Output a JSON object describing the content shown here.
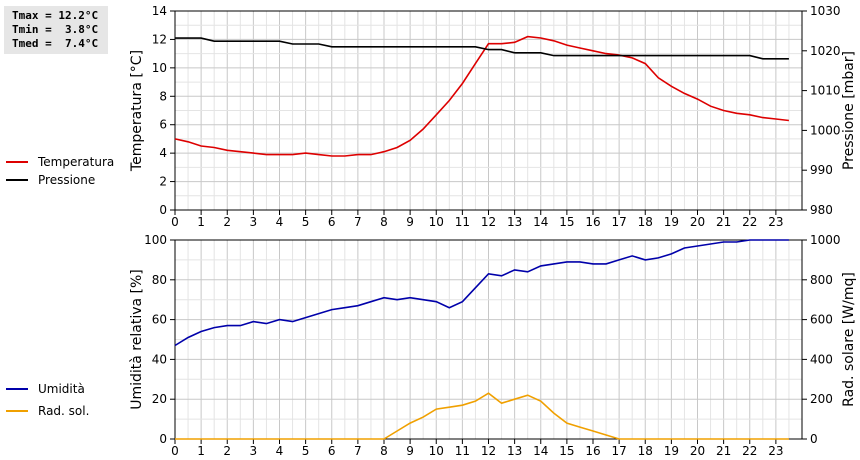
{
  "stats": {
    "tmax": "Tmax = 12.2°C",
    "tmin": "Tmin =  3.8°C",
    "tmed": "Tmed =  7.4°C"
  },
  "legend_top": [
    {
      "label": "Temperatura",
      "color": "#dd0000"
    },
    {
      "label": "Pressione",
      "color": "#000000"
    }
  ],
  "legend_bottom": [
    {
      "label": "Umidità",
      "color": "#0000aa"
    },
    {
      "label": "Rad. sol.",
      "color": "#f0a000"
    }
  ],
  "chart_data": [
    {
      "type": "line",
      "x_ticks": [
        "0",
        "1",
        "2",
        "3",
        "4",
        "5",
        "6",
        "7",
        "8",
        "9",
        "10",
        "11",
        "12",
        "13",
        "14",
        "15",
        "16",
        "17",
        "18",
        "19",
        "20",
        "21",
        "22",
        "23"
      ],
      "xlim": [
        0,
        24
      ],
      "ylabel_left": "Temperatura [°C]",
      "ylim_left": [
        0,
        14
      ],
      "yticks_left": [
        "0",
        "2",
        "4",
        "6",
        "8",
        "10",
        "12",
        "14"
      ],
      "ylabel_right": "Pressione [mbar]",
      "ylim_right": [
        980,
        1030
      ],
      "yticks_right": [
        "980",
        "990",
        "1000",
        "1010",
        "1020",
        "1030"
      ],
      "grid": true,
      "series": [
        {
          "name": "Temperatura",
          "axis": "left",
          "color": "#dd0000",
          "x": [
            0,
            0.5,
            1,
            1.5,
            2,
            2.5,
            3,
            3.5,
            4,
            4.5,
            5,
            5.5,
            6,
            6.5,
            7,
            7.5,
            8,
            8.5,
            9,
            9.5,
            10,
            10.5,
            11,
            11.5,
            12,
            12.5,
            13,
            13.5,
            14,
            14.5,
            15,
            15.5,
            16,
            16.5,
            17,
            17.5,
            18,
            18.5,
            19,
            19.5,
            20,
            20.5,
            21,
            21.5,
            22,
            22.5,
            23,
            23.5
          ],
          "y": [
            5.0,
            4.8,
            4.5,
            4.4,
            4.2,
            4.1,
            4.0,
            3.9,
            3.9,
            3.9,
            4.0,
            3.9,
            3.8,
            3.8,
            3.9,
            3.9,
            4.1,
            4.4,
            4.9,
            5.7,
            6.7,
            7.7,
            8.9,
            10.3,
            11.7,
            11.7,
            11.8,
            12.2,
            12.1,
            11.9,
            11.6,
            11.4,
            11.2,
            11.0,
            10.9,
            10.7,
            10.3,
            9.3,
            8.7,
            8.2,
            7.8,
            7.3,
            7.0,
            6.8,
            6.7,
            6.5,
            6.4,
            6.3
          ]
        },
        {
          "name": "Pressione",
          "axis": "right",
          "color": "#000000",
          "x": [
            0,
            0.5,
            1,
            1.5,
            2,
            2.5,
            3,
            3.5,
            4,
            4.5,
            5,
            5.5,
            6,
            6.5,
            7,
            7.5,
            8,
            8.5,
            9,
            9.5,
            10,
            10.5,
            11,
            11.5,
            12,
            12.5,
            13,
            13.5,
            14,
            14.5,
            15,
            15.5,
            16,
            16.5,
            17,
            17.5,
            18,
            18.5,
            19,
            19.5,
            20,
            20.5,
            21,
            21.5,
            22,
            22.5,
            23,
            23.5
          ],
          "y": [
            1023.2,
            1023.2,
            1023.2,
            1022.4,
            1022.4,
            1022.4,
            1022.4,
            1022.4,
            1022.4,
            1021.7,
            1021.7,
            1021.7,
            1021.0,
            1021.0,
            1021.0,
            1021.0,
            1021.0,
            1021.0,
            1021.0,
            1021.0,
            1021.0,
            1021.0,
            1021.0,
            1021.0,
            1020.3,
            1020.3,
            1019.5,
            1019.5,
            1019.5,
            1018.8,
            1018.8,
            1018.8,
            1018.8,
            1018.8,
            1018.8,
            1018.8,
            1018.8,
            1018.8,
            1018.8,
            1018.8,
            1018.8,
            1018.8,
            1018.8,
            1018.8,
            1018.8,
            1018.0,
            1018.0,
            1018.0
          ]
        }
      ]
    },
    {
      "type": "line",
      "x_ticks": [
        "0",
        "1",
        "2",
        "3",
        "4",
        "5",
        "6",
        "7",
        "8",
        "9",
        "10",
        "11",
        "12",
        "13",
        "14",
        "15",
        "16",
        "17",
        "18",
        "19",
        "20",
        "21",
        "22",
        "23"
      ],
      "xlim": [
        0,
        24
      ],
      "ylabel_left": "Umidità relativa [%]",
      "ylim_left": [
        0,
        100
      ],
      "yticks_left": [
        "0",
        "20",
        "40",
        "60",
        "80",
        "100"
      ],
      "ylabel_right": "Rad. solare [W/mq]",
      "ylim_right": [
        0,
        1000
      ],
      "yticks_right": [
        "0",
        "200",
        "400",
        "600",
        "800",
        "1000"
      ],
      "grid": true,
      "series": [
        {
          "name": "Umidità",
          "axis": "left",
          "color": "#0000aa",
          "x": [
            0,
            0.5,
            1,
            1.5,
            2,
            2.5,
            3,
            3.5,
            4,
            4.5,
            5,
            5.5,
            6,
            6.5,
            7,
            7.5,
            8,
            8.5,
            9,
            9.5,
            10,
            10.5,
            11,
            11.5,
            12,
            12.5,
            13,
            13.5,
            14,
            14.5,
            15,
            15.5,
            16,
            16.5,
            17,
            17.5,
            18,
            18.5,
            19,
            19.5,
            20,
            20.5,
            21,
            21.5,
            22,
            22.5,
            23,
            23.5
          ],
          "y": [
            47,
            51,
            54,
            56,
            57,
            57,
            59,
            58,
            60,
            59,
            61,
            63,
            65,
            66,
            67,
            69,
            71,
            70,
            71,
            70,
            69,
            66,
            69,
            76,
            83,
            82,
            85,
            84,
            87,
            88,
            89,
            89,
            88,
            88,
            90,
            92,
            90,
            91,
            93,
            96,
            97,
            98,
            99,
            99,
            100,
            100,
            100,
            100
          ]
        },
        {
          "name": "Rad. sol.",
          "axis": "right",
          "color": "#f0a000",
          "x": [
            0,
            1,
            2,
            3,
            4,
            5,
            6,
            7,
            7.5,
            8,
            8.5,
            9,
            9.5,
            10,
            10.5,
            11,
            11.5,
            12,
            12.5,
            13,
            13.5,
            14,
            14.5,
            15,
            15.5,
            16,
            16.5,
            17,
            17.5,
            18,
            19,
            20,
            21,
            22,
            23,
            23.5
          ],
          "y": [
            0,
            0,
            0,
            0,
            0,
            0,
            0,
            0,
            0,
            0,
            40,
            80,
            110,
            150,
            160,
            170,
            190,
            230,
            180,
            200,
            220,
            190,
            130,
            80,
            60,
            40,
            20,
            0,
            0,
            0,
            0,
            0,
            0,
            0,
            0,
            0
          ]
        }
      ]
    }
  ]
}
